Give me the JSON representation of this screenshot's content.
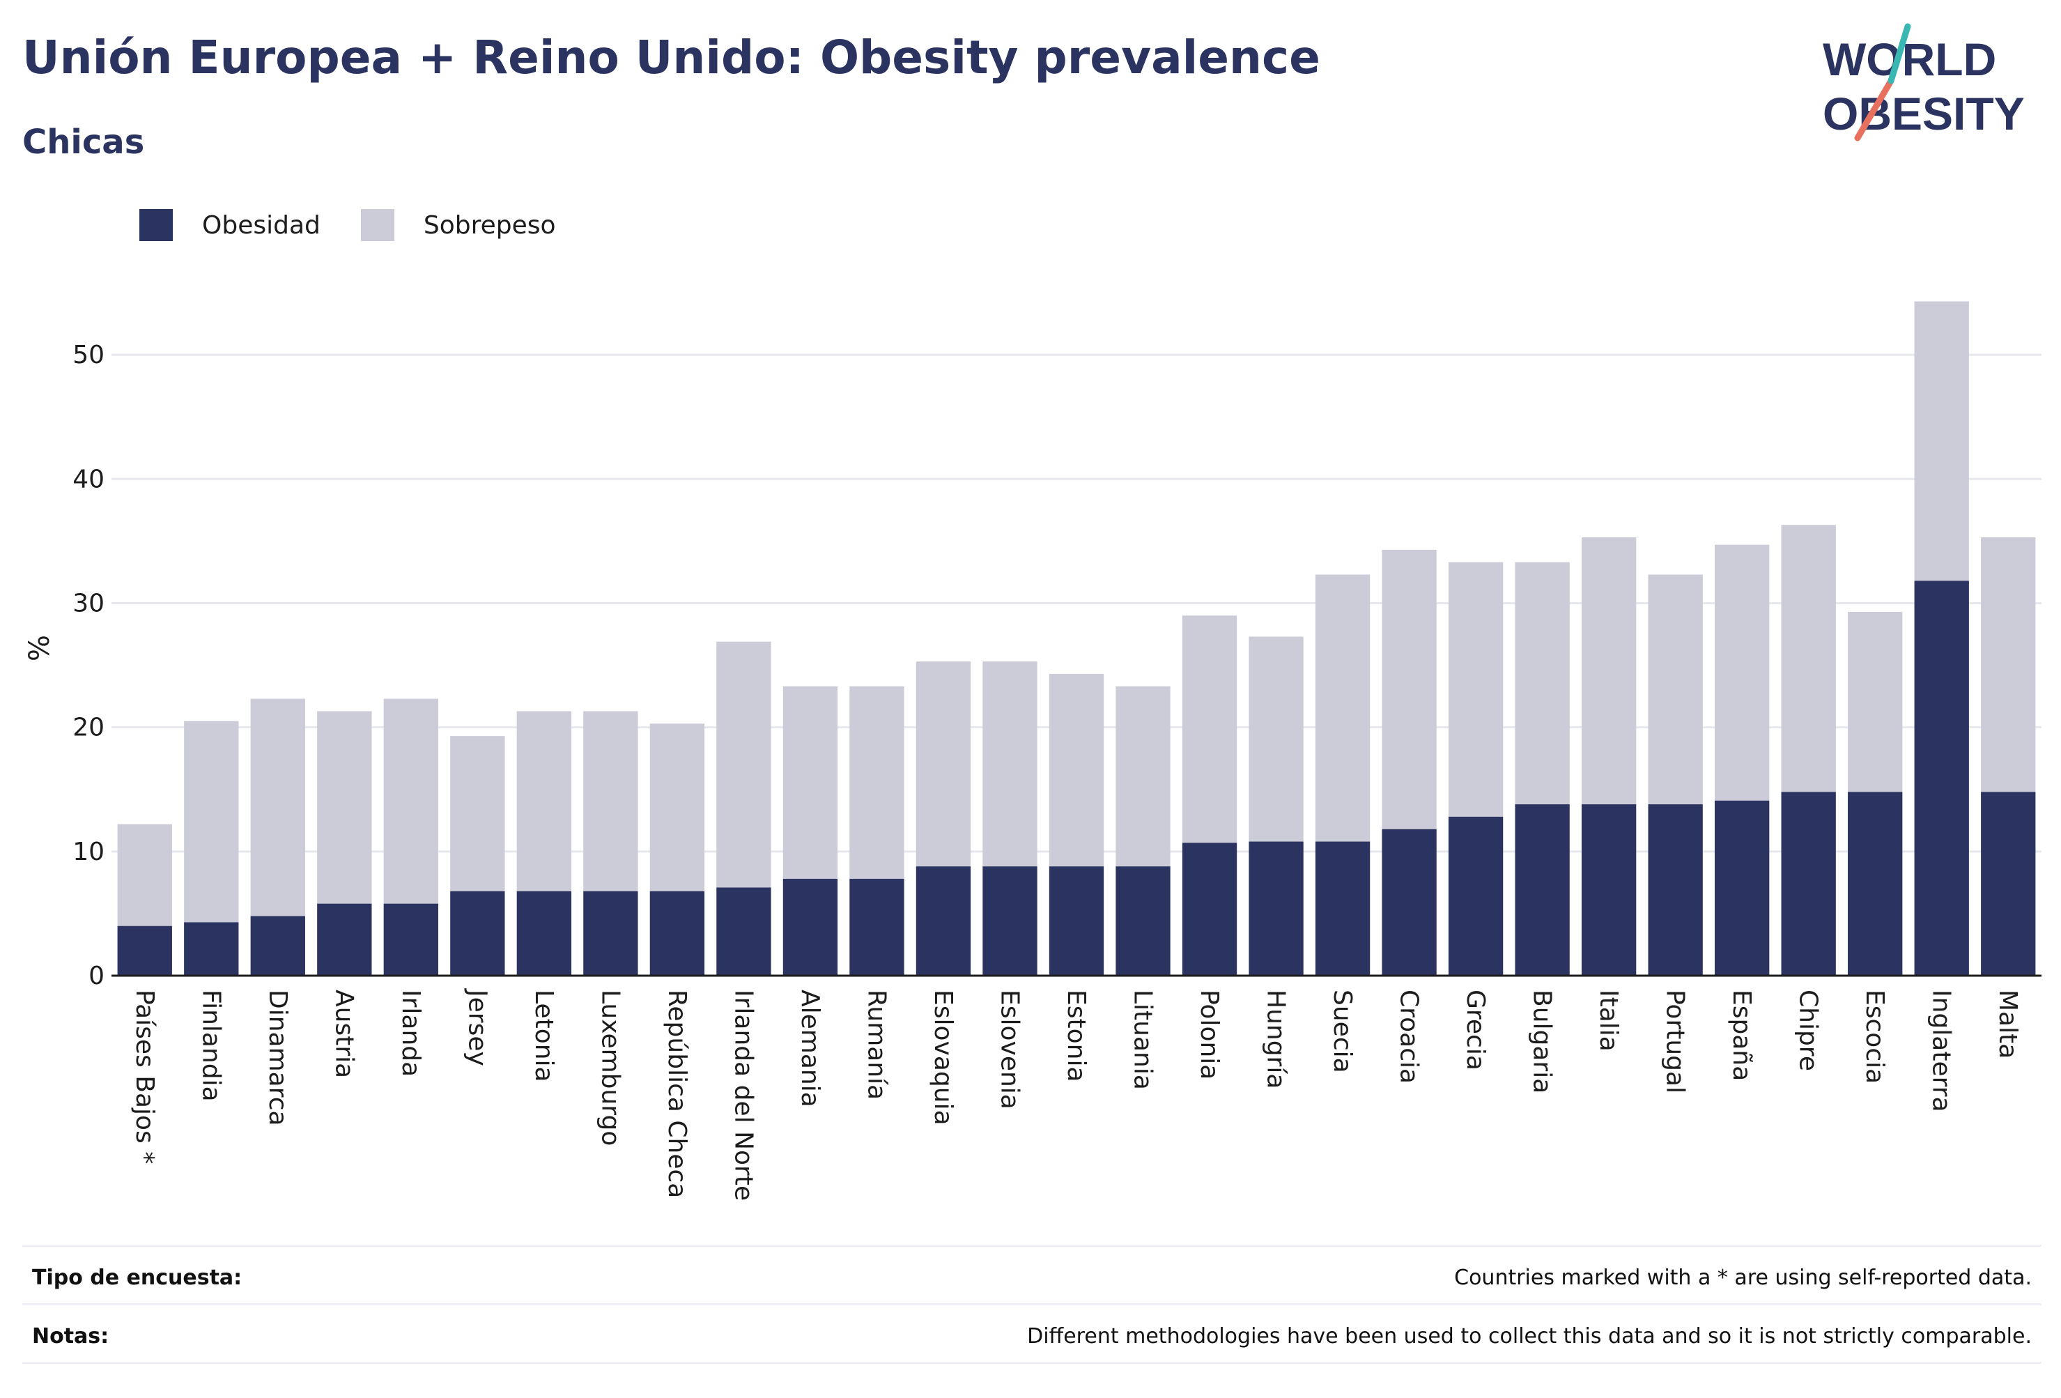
{
  "header": {
    "title": "Unión Europea + Reino Unido: Obesity prevalence",
    "subtitle": "Chicas"
  },
  "logo": {
    "line1": "WORLD",
    "line2": "OBESITY"
  },
  "legend": [
    {
      "label": "Obesidad",
      "color": "#2b3461"
    },
    {
      "label": "Sobrepeso",
      "color": "#cbccd8"
    }
  ],
  "chart_data": {
    "type": "bar",
    "stacked": true,
    "ylabel": "%",
    "xlabel": "",
    "ylim": [
      0,
      55
    ],
    "yticks": [
      0,
      10,
      20,
      30,
      40,
      50
    ],
    "grid": true,
    "legend_position": "top-left",
    "categories": [
      "Países Bajos *",
      "Finlandia",
      "Dinamarca",
      "Austria",
      "Irlanda",
      "Jersey",
      "Letonia",
      "Luxemburgo",
      "República Checa",
      "Irlanda del Norte",
      "Alemania",
      "Rumanía",
      "Eslovaquia",
      "Eslovenia",
      "Estonia",
      "Lituania",
      "Polonia",
      "Hungría",
      "Suecia",
      "Croacia",
      "Grecia",
      "Bulgaria",
      "Italia",
      "Portugal",
      "España",
      "Chipre",
      "Escocia",
      "Inglaterra",
      "Malta"
    ],
    "series": [
      {
        "name": "Obesidad",
        "color": "#2b3461",
        "values": [
          4,
          4.3,
          4.8,
          5.8,
          5.8,
          6.8,
          6.8,
          6.8,
          6.8,
          7.1,
          7.8,
          7.8,
          8.8,
          8.8,
          8.8,
          8.8,
          10.7,
          10.8,
          10.8,
          11.8,
          12.8,
          13.8,
          13.8,
          13.8,
          14.1,
          14.8,
          14.8,
          31.8,
          14.8
        ]
      },
      {
        "name": "Sobrepeso",
        "color": "#cbccd8",
        "values": [
          8.2,
          16.2,
          17.5,
          15.5,
          16.5,
          12.5,
          14.5,
          14.5,
          13.5,
          19.8,
          15.5,
          15.5,
          16.5,
          16.5,
          15.5,
          14.5,
          18.3,
          16.5,
          21.5,
          22.5,
          20.5,
          19.5,
          21.5,
          18.5,
          20.6,
          21.5,
          14.5,
          22.5,
          20.5
        ]
      }
    ]
  },
  "footer": {
    "survey_label": "Tipo de encuesta:",
    "survey_value": "Countries marked with a * are using self-reported data.",
    "notes_label": "Notas:",
    "notes_value": "Different methodologies have been used to collect this data and so it is not strictly comparable."
  }
}
